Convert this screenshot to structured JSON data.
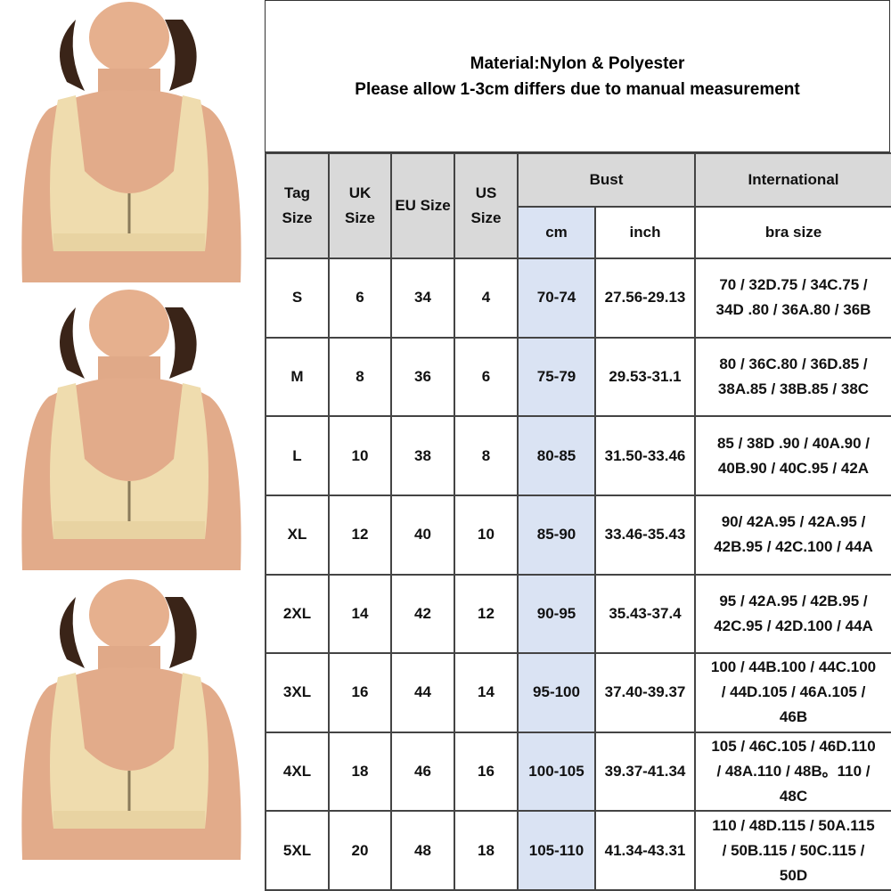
{
  "header": {
    "lines": [
      "Material:Nylon & Polyester",
      "Please allow 1-3cm differs due to manual measurement"
    ]
  },
  "table": {
    "columns": [
      [
        "Tag",
        "Size"
      ],
      [
        "UK",
        "Size"
      ],
      [
        "EU Size"
      ],
      [
        "US",
        "Size"
      ]
    ],
    "bust": "Bust",
    "cm": "cm",
    "inch": "inch",
    "international": "International",
    "bra_size": "bra size",
    "rows": [
      {
        "tag": "S",
        "uk": 6,
        "eu": 34,
        "us": 4,
        "cm": "70-74",
        "inch": "27.56-29.13",
        "intl": [
          "70 / 32D.75 / 34C.75 /",
          "34D .80 / 36A.80 / 36B"
        ]
      },
      {
        "tag": "M",
        "uk": 8,
        "eu": 36,
        "us": 6,
        "cm": "75-79",
        "inch": "29.53-31.1",
        "intl": [
          "80 / 36C.80 / 36D.85 /",
          "38A.85 / 38B.85 / 38C"
        ]
      },
      {
        "tag": "L",
        "uk": 10,
        "eu": 38,
        "us": 8,
        "cm": "80-85",
        "inch": "31.50-33.46",
        "intl": [
          "85 / 38D .90 / 40A.90 /",
          "40B.90 / 40C.95 / 42A"
        ]
      },
      {
        "tag": "XL",
        "uk": 12,
        "eu": 40,
        "us": 10,
        "cm": "85-90",
        "inch": "33.46-35.43",
        "intl": [
          "90/ 42A.95 / 42A.95 /",
          "42B.95 / 42C.100 / 44A"
        ]
      },
      {
        "tag": "2XL",
        "uk": 14,
        "eu": 42,
        "us": 12,
        "cm": "90-95",
        "inch": "35.43-37.4",
        "intl": [
          "95 / 42A.95 / 42B.95 /",
          "42C.95 / 42D.100 / 44A"
        ]
      },
      {
        "tag": "3XL",
        "uk": 16,
        "eu": 44,
        "us": 14,
        "cm": "95-100",
        "inch": "37.40-39.37",
        "intl": [
          "100 / 44B.100 / 44C.100",
          "/ 44D.105 / 46A.105 /",
          "46B"
        ]
      },
      {
        "tag": "4XL",
        "uk": 18,
        "eu": 46,
        "us": 16,
        "cm": "100-105",
        "inch": "39.37-41.34",
        "intl": [
          "105 / 46C.105 / 46D.110",
          "/ 48A.110 / 48B。110 /",
          "48C"
        ]
      },
      {
        "tag": "5XL",
        "uk": 20,
        "eu": 48,
        "us": 18,
        "cm": "105-110",
        "inch": "41.34-43.31",
        "intl": [
          "110 / 48D.115 / 50A.115",
          "/ 50B.115 / 50C.115 /",
          "50D"
        ]
      }
    ]
  }
}
